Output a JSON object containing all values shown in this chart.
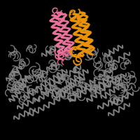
{
  "background_color": "#000000",
  "orange_color": "#E8920A",
  "pink_color": "#E8729A",
  "gray_color": "#888888",
  "gray_color2": "#AAAAAA",
  "figsize": [
    2.0,
    2.0
  ],
  "dpi": 100,
  "xlim": [
    0,
    200
  ],
  "ylim": [
    0,
    200
  ]
}
